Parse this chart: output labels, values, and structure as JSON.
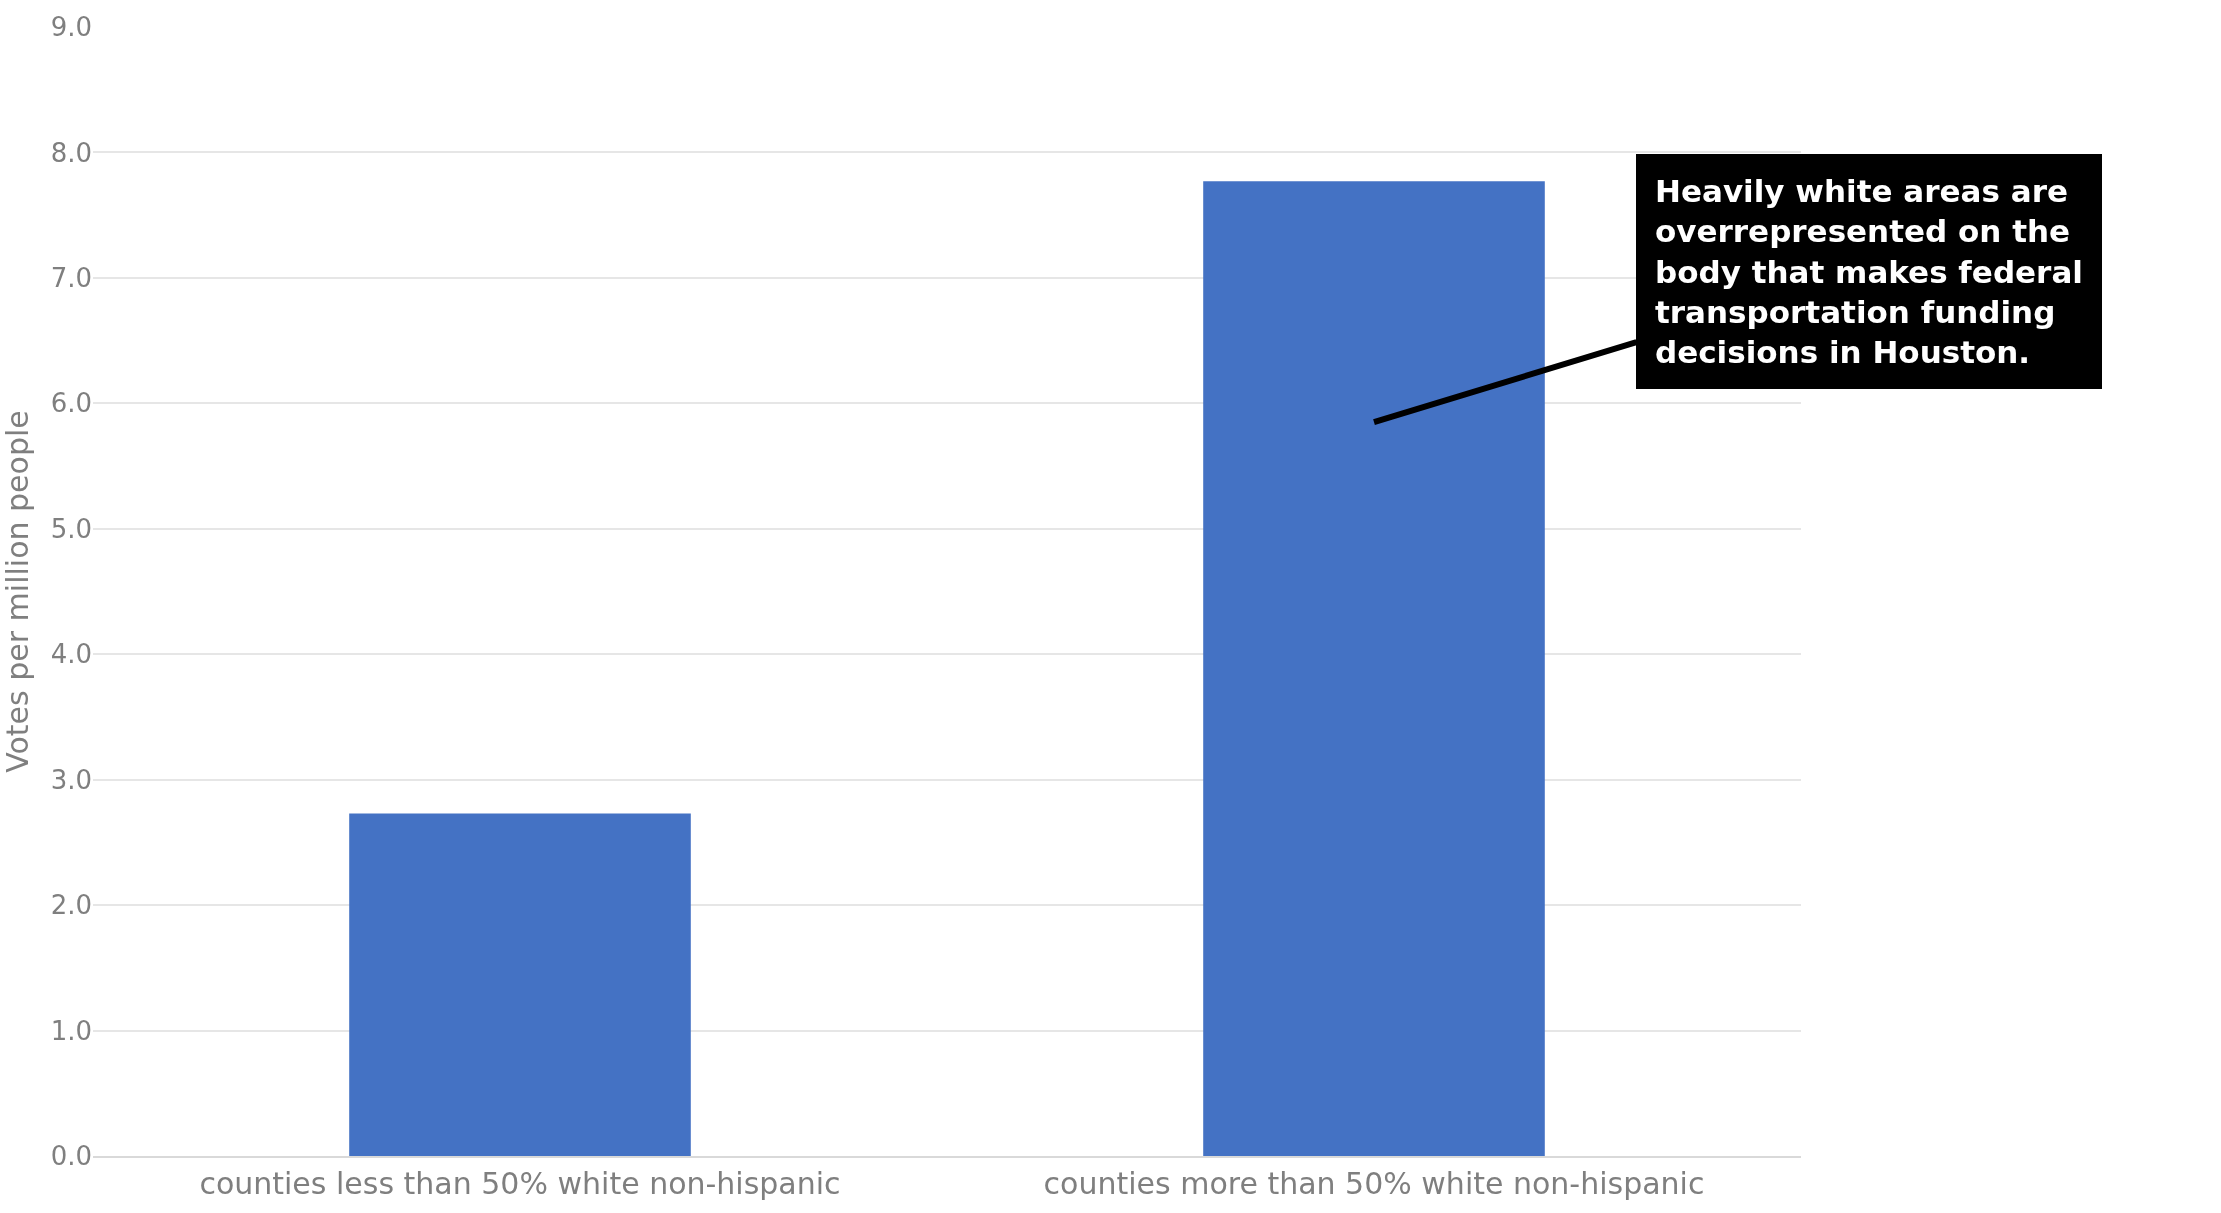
{
  "chart_data": {
    "type": "bar",
    "ylabel": "Votes per million people",
    "categories": [
      "counties less than 50% white non-hispanic",
      "counties more than 50% white non-hispanic"
    ],
    "values": [
      2.73,
      7.77
    ],
    "color": "#4472c4",
    "ylim": [
      0,
      9
    ],
    "yticks": [
      {
        "value": 0,
        "label": "0.0"
      },
      {
        "value": 1,
        "label": "1.0"
      },
      {
        "value": 2,
        "label": "2.0"
      },
      {
        "value": 3,
        "label": "3.0"
      },
      {
        "value": 4,
        "label": "4.0"
      },
      {
        "value": 5,
        "label": "5.0"
      },
      {
        "value": 6,
        "label": "6.0"
      },
      {
        "value": 7,
        "label": "7.0"
      },
      {
        "value": 8,
        "label": "8.0"
      },
      {
        "value": 9,
        "label": "9.0"
      }
    ],
    "grid": "y",
    "annotations": [
      "Heavily white areas are overrepresented on the body that makes federal transportation funding decisions in Houston."
    ]
  }
}
